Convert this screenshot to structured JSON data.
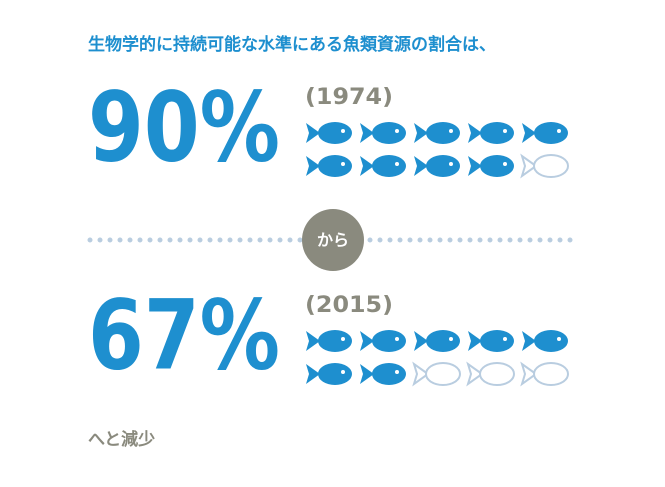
{
  "headline": "生物学的に持続可能な水準にある魚類資源の割合は、",
  "blocks": [
    {
      "percent": "90%",
      "year": "(1974)",
      "filled": 9,
      "total": 10
    },
    {
      "percent": "67%",
      "year": "(2015)",
      "filled": 7,
      "total": 10
    }
  ],
  "connector": "から",
  "footer": "へと減少"
}
